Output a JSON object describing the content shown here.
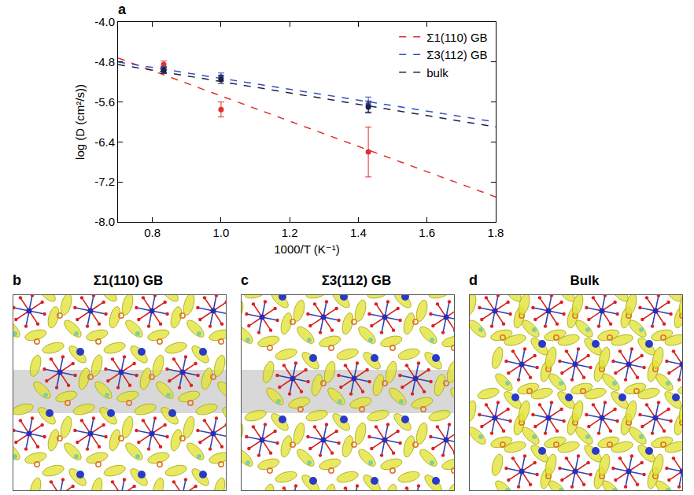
{
  "chart_data": {
    "type": "scatter",
    "panel": "a",
    "x_label": "1000/T (K⁻¹)",
    "y_label": "log (D (cm²/s))",
    "xlim": [
      0.7,
      1.8
    ],
    "xticks": [
      0.8,
      {
        "value": 1,
        "label": "1.0"
      },
      1.2,
      1.4,
      1.6,
      1.8
    ],
    "ylim": [
      -8,
      -4
    ],
    "yticks": [
      {
        "value": -8,
        "label": "-8.0"
      },
      -7.2,
      -6.4,
      -5.6,
      -4.8,
      {
        "value": -4,
        "label": "-4.0"
      }
    ],
    "grid": false,
    "legend": "upper right",
    "marker": "circle",
    "line_style": "dashed",
    "series": [
      {
        "name": "Σ1(110) GB",
        "color": "#e03030",
        "x": [
          0.833,
          1.0,
          1.429
        ],
        "values": [
          -4.85,
          -5.75,
          -6.6
        ],
        "errors": [
          0.07,
          0.15,
          0.5
        ],
        "fit": {
          "x": [
            0.7,
            1.8
          ],
          "values": [
            -4.72,
            -7.5
          ]
        }
      },
      {
        "name": "Σ3(112) GB",
        "color": "#3050c0",
        "x": [
          0.833,
          1.0,
          1.429
        ],
        "values": [
          -4.95,
          -5.1,
          -5.65
        ],
        "errors": [
          0.06,
          0.08,
          0.15
        ],
        "fit": {
          "x": [
            0.7,
            1.8
          ],
          "values": [
            -4.8,
            -6.0
          ]
        }
      },
      {
        "name": "bulk",
        "color": "#202040",
        "x": [
          0.833,
          1.0,
          1.429
        ],
        "values": [
          -4.97,
          -5.15,
          -5.7
        ],
        "errors": [
          0.06,
          0.08,
          0.12
        ],
        "fit": {
          "x": [
            0.7,
            1.8
          ],
          "values": [
            -4.85,
            -6.1
          ]
        }
      }
    ]
  },
  "panels": [
    {
      "label": "b",
      "title": "Σ1(110) GB"
    },
    {
      "label": "c",
      "title": "Σ3(112) GB"
    },
    {
      "label": "d",
      "title": "Bulk"
    }
  ]
}
